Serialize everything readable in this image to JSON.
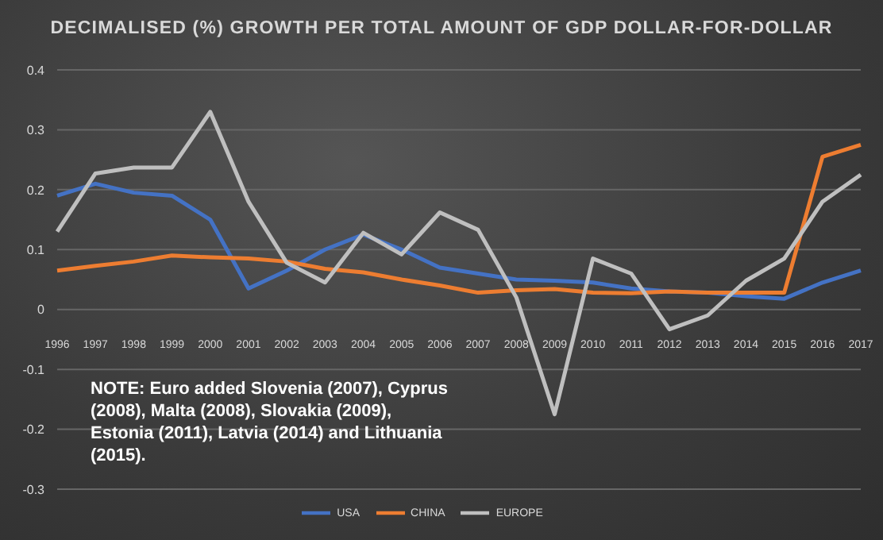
{
  "chart_data": {
    "type": "line",
    "title": "DECIMALISED (%) GROWTH PER TOTAL AMOUNT OF GDP DOLLAR-FOR-DOLLAR",
    "categories": [
      "1996",
      "1997",
      "1998",
      "1999",
      "2000",
      "2001",
      "2002",
      "2003",
      "2004",
      "2005",
      "2006",
      "2007",
      "2008",
      "2009",
      "2010",
      "2011",
      "2012",
      "2013",
      "2014",
      "2015",
      "2016",
      "2017"
    ],
    "series": [
      {
        "name": "USA",
        "color": "#4472c4",
        "values": [
          0.19,
          0.21,
          0.195,
          0.19,
          0.15,
          0.035,
          0.065,
          0.1,
          0.125,
          0.1,
          0.07,
          0.06,
          0.05,
          0.048,
          0.045,
          0.035,
          0.03,
          0.028,
          0.022,
          0.018,
          0.045,
          0.065
        ]
      },
      {
        "name": "CHINA",
        "color": "#ed7d31",
        "values": [
          0.065,
          0.073,
          0.08,
          0.09,
          0.087,
          0.085,
          0.08,
          0.068,
          0.062,
          0.05,
          0.04,
          0.028,
          0.032,
          0.034,
          0.028,
          0.027,
          0.03,
          0.028,
          0.028,
          0.028,
          0.255,
          0.275
        ]
      },
      {
        "name": "EUROPE",
        "color": "#bfbfbf",
        "values": [
          0.13,
          0.227,
          0.237,
          0.237,
          0.33,
          0.18,
          0.078,
          0.045,
          0.128,
          0.092,
          0.162,
          0.133,
          0.02,
          -0.175,
          0.085,
          0.06,
          -0.033,
          -0.01,
          0.048,
          0.085,
          0.18,
          0.225
        ]
      }
    ],
    "ylim": [
      -0.3,
      0.4
    ],
    "yticks": [
      -0.3,
      -0.2,
      -0.1,
      0,
      0.1,
      0.2,
      0.3,
      0.4
    ],
    "grid": "y",
    "legend": "bottom",
    "marker": "none",
    "line_style": "solid",
    "annotations": [
      "NOTE: Euro added Slovenia (2007), Cyprus (2008), Malta (2008), Slovakia (2009), Estonia (2011), Latvia (2014) and Lithuania (2015)."
    ]
  }
}
